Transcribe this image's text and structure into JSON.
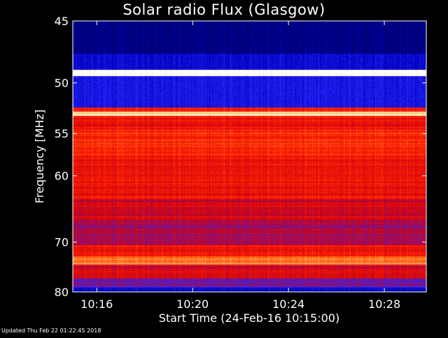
{
  "chart_data": {
    "type": "heatmap",
    "title": "Solar radio Flux (Glasgow)",
    "xlabel": "Start Time (24-Feb-16 10:15:00)",
    "ylabel": "Frequency [MHz]",
    "x_unit": "minutes",
    "xlim": [
      "10:15:00",
      "10:29:45"
    ],
    "ylim": [
      45,
      80
    ],
    "y_scale": "reciprocal",
    "x_ticks": [
      "10:16",
      "10:20",
      "10:24",
      "10:28"
    ],
    "y_ticks": [
      45,
      50,
      55,
      60,
      70,
      80
    ],
    "colormap": "blue-red-yellow-white (low to high intensity)",
    "frequency_bands": [
      {
        "from": 45,
        "to": 47.5,
        "level": 0.05
      },
      {
        "from": 47.5,
        "to": 48.8,
        "level": 0.18
      },
      {
        "from": 48.8,
        "to": 49.4,
        "level": 1.0
      },
      {
        "from": 49.4,
        "to": 52.3,
        "level": 0.22
      },
      {
        "from": 52.3,
        "to": 52.7,
        "level": 0.6
      },
      {
        "from": 52.7,
        "to": 53.1,
        "level": 0.95
      },
      {
        "from": 53.1,
        "to": 54.5,
        "level": 0.55
      },
      {
        "from": 54.5,
        "to": 58,
        "level": 0.62
      },
      {
        "from": 58,
        "to": 63,
        "level": 0.56
      },
      {
        "from": 63,
        "to": 66,
        "level": 0.5
      },
      {
        "from": 66,
        "to": 68.5,
        "level": 0.46
      },
      {
        "from": 68.5,
        "to": 70.5,
        "level": 0.44
      },
      {
        "from": 70.5,
        "to": 72.5,
        "level": 0.58
      },
      {
        "from": 72.5,
        "to": 74,
        "level": 0.72
      },
      {
        "from": 74,
        "to": 77,
        "level": 0.5
      },
      {
        "from": 77,
        "to": 79,
        "level": 0.36
      },
      {
        "from": 79,
        "to": 80,
        "level": 0.15
      }
    ],
    "bright_lines_mhz": [
      49.0,
      52.9,
      74.0
    ],
    "colors": {
      "low": "#00007f",
      "mid_blue": "#1a1aff",
      "mid": "#cc0000",
      "high": "#ffcc55",
      "max": "#ffffff"
    }
  },
  "footer": {
    "updated": "Updated Thu Feb 22 01:22:45 2018"
  }
}
